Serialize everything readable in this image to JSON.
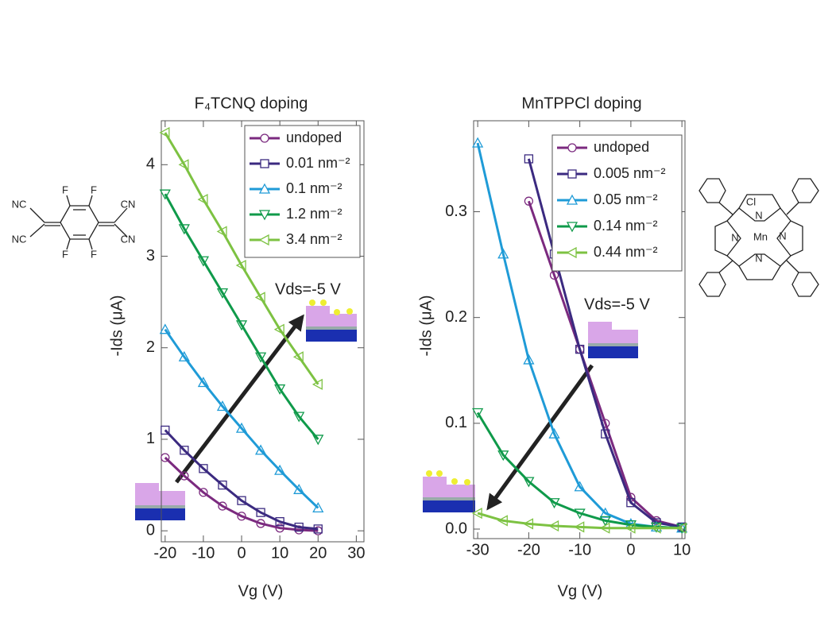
{
  "chart_data": [
    {
      "type": "line",
      "title": "F₄TCNQ doping",
      "x_label": "Vg (V)",
      "y_label": "-Ids (μA)",
      "annotation": "Vds=-5 V",
      "x": [
        -20,
        -15,
        -10,
        -5,
        0,
        5,
        10,
        15,
        20
      ],
      "xlim": [
        -21,
        32
      ],
      "xticks": [
        -20,
        -10,
        0,
        10,
        20,
        30
      ],
      "ylim": [
        -0.12,
        4.48
      ],
      "yticks": [
        0,
        1,
        2,
        3,
        4
      ],
      "legend": "upper right",
      "series": [
        {
          "name": "undoped",
          "color": "#7b2a7f",
          "marker": "circle",
          "values": [
            0.8,
            0.6,
            0.42,
            0.27,
            0.16,
            0.08,
            0.03,
            0.01,
            0.0
          ]
        },
        {
          "name": "0.01 nm⁻²",
          "color": "#3b2a80",
          "marker": "square",
          "values": [
            1.1,
            0.88,
            0.68,
            0.5,
            0.33,
            0.2,
            0.1,
            0.04,
            0.02
          ]
        },
        {
          "name": "0.1 nm⁻²",
          "color": "#1f9bd7",
          "marker": "triangle-up",
          "values": [
            2.2,
            1.9,
            1.62,
            1.36,
            1.12,
            0.88,
            0.66,
            0.45,
            0.25
          ]
        },
        {
          "name": "1.2 nm⁻²",
          "color": "#0f9a4a",
          "marker": "triangle-down",
          "values": [
            3.68,
            3.3,
            2.95,
            2.6,
            2.25,
            1.9,
            1.55,
            1.25,
            1.0
          ]
        },
        {
          "name": "3.4 nm⁻²",
          "color": "#7dc242",
          "marker": "triangle-left",
          "values": [
            4.35,
            4.0,
            3.62,
            3.27,
            2.9,
            2.55,
            2.2,
            1.9,
            1.6
          ]
        }
      ]
    },
    {
      "type": "line",
      "title": "MnTPPCl doping",
      "x_label": "Vg (V)",
      "y_label": "-Ids (μA)",
      "annotation": "Vds=-5 V",
      "x": [
        -30,
        -25,
        -20,
        -15,
        -10,
        -5,
        0,
        5,
        10
      ],
      "xlim": [
        -30.8,
        10.6
      ],
      "xticks": [
        -30,
        -20,
        -10,
        0,
        10
      ],
      "ylim": [
        -0.009,
        0.386
      ],
      "yticks": [
        {
          "value": 0,
          "label": "0.0"
        },
        0.1,
        0.2,
        0.3
      ],
      "legend": "upper center",
      "series": [
        {
          "name": "undoped",
          "color": "#7b2a7f",
          "marker": "circle",
          "values": [
            null,
            null,
            0.31,
            0.24,
            0.17,
            0.1,
            0.03,
            0.008,
            0.002
          ]
        },
        {
          "name": "0.005 nm⁻²",
          "color": "#3b2a80",
          "marker": "square",
          "values": [
            null,
            null,
            0.35,
            0.26,
            0.17,
            0.09,
            0.025,
            0.006,
            0.002
          ]
        },
        {
          "name": "0.05 nm⁻²",
          "color": "#1f9bd7",
          "marker": "triangle-up",
          "values": [
            0.365,
            0.26,
            0.16,
            0.09,
            0.04,
            0.015,
            0.005,
            0.002,
            0.001
          ]
        },
        {
          "name": "0.14 nm⁻²",
          "color": "#0f9a4a",
          "marker": "triangle-down",
          "values": [
            0.11,
            0.07,
            0.045,
            0.025,
            0.015,
            0.008,
            0.004,
            0.002,
            0.001
          ]
        },
        {
          "name": "0.44 nm⁻²",
          "color": "#7dc242",
          "marker": "triangle-left",
          "values": [
            0.015,
            0.008,
            0.005,
            0.003,
            0.002,
            0.001,
            0.001,
            0.001,
            0.001
          ]
        }
      ]
    }
  ],
  "structures": [
    [
      "NC",
      "NC",
      "F",
      "F",
      "F",
      "F",
      "CN",
      "CN"
    ],
    [
      "Cl",
      "N",
      "N",
      "Mn",
      "N",
      "N"
    ]
  ]
}
